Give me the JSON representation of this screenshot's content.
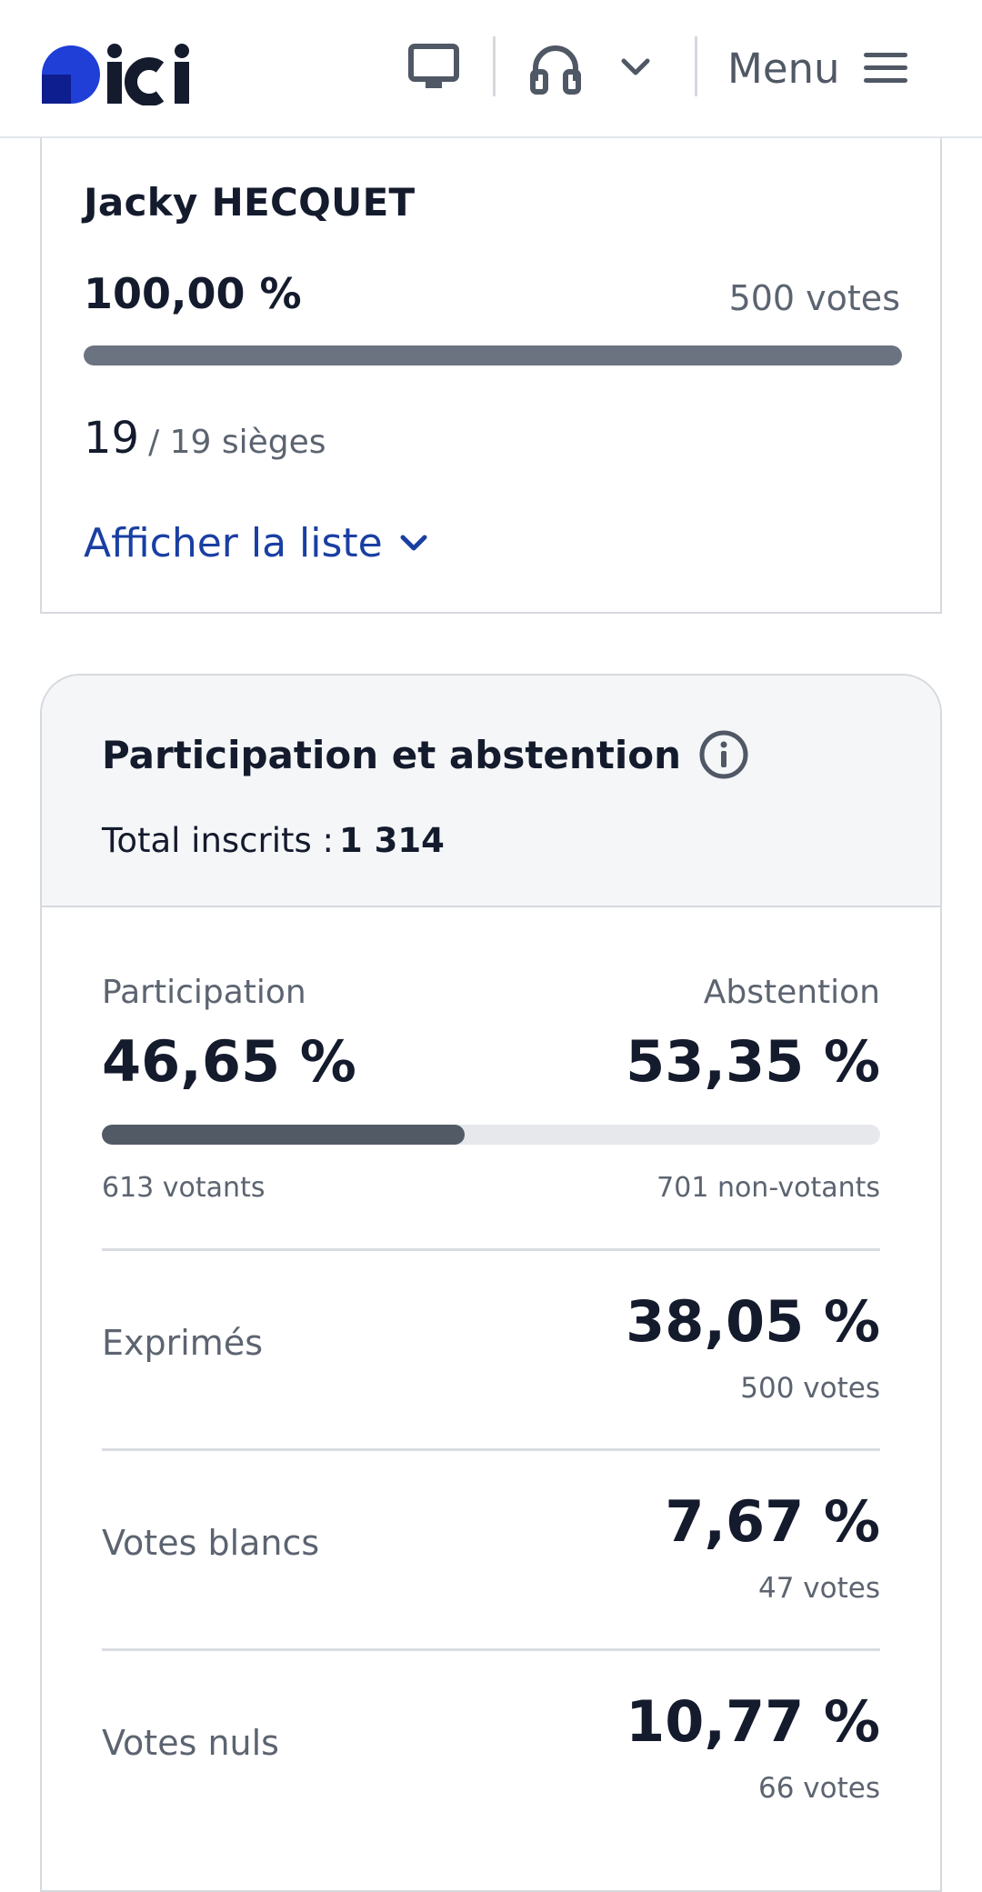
{
  "header": {
    "logo_text": "ici",
    "menu_label": "Menu",
    "icons": [
      "tv-icon",
      "headphones-icon",
      "chevron-down-icon",
      "hamburger-icon"
    ],
    "colors": {
      "logo_blue": "#1f3fd6",
      "logo_dark": "#0e1e8f",
      "text": "#141b2d"
    }
  },
  "candidate": {
    "name": "Jacky HECQUET",
    "percent": "100,00 %",
    "votes": "500 votes",
    "share": 1.0,
    "seats_won": "19",
    "seats_total": "/ 19 sièges",
    "show_list_label": "Afficher la liste",
    "show_list_color": "#1a3fa3"
  },
  "participation": {
    "title": "Participation et abstention",
    "registered_label": "Total inscrits :",
    "registered_value": "1 314",
    "participation_label": "Participation",
    "participation_value": "46,65 %",
    "participation_share": 0.4665,
    "abstention_label": "Abstention",
    "abstention_value": "53,35 %",
    "voters": "613 votants",
    "non_voters": "701 non-votants",
    "stats": [
      {
        "label": "Exprimés",
        "value": "38,05 %",
        "votes": "500 votes"
      },
      {
        "label": "Votes blancs",
        "value": "7,67 %",
        "votes": "47 votes"
      },
      {
        "label": "Votes nuls",
        "value": "10,77 %",
        "votes": "66 votes"
      }
    ]
  }
}
